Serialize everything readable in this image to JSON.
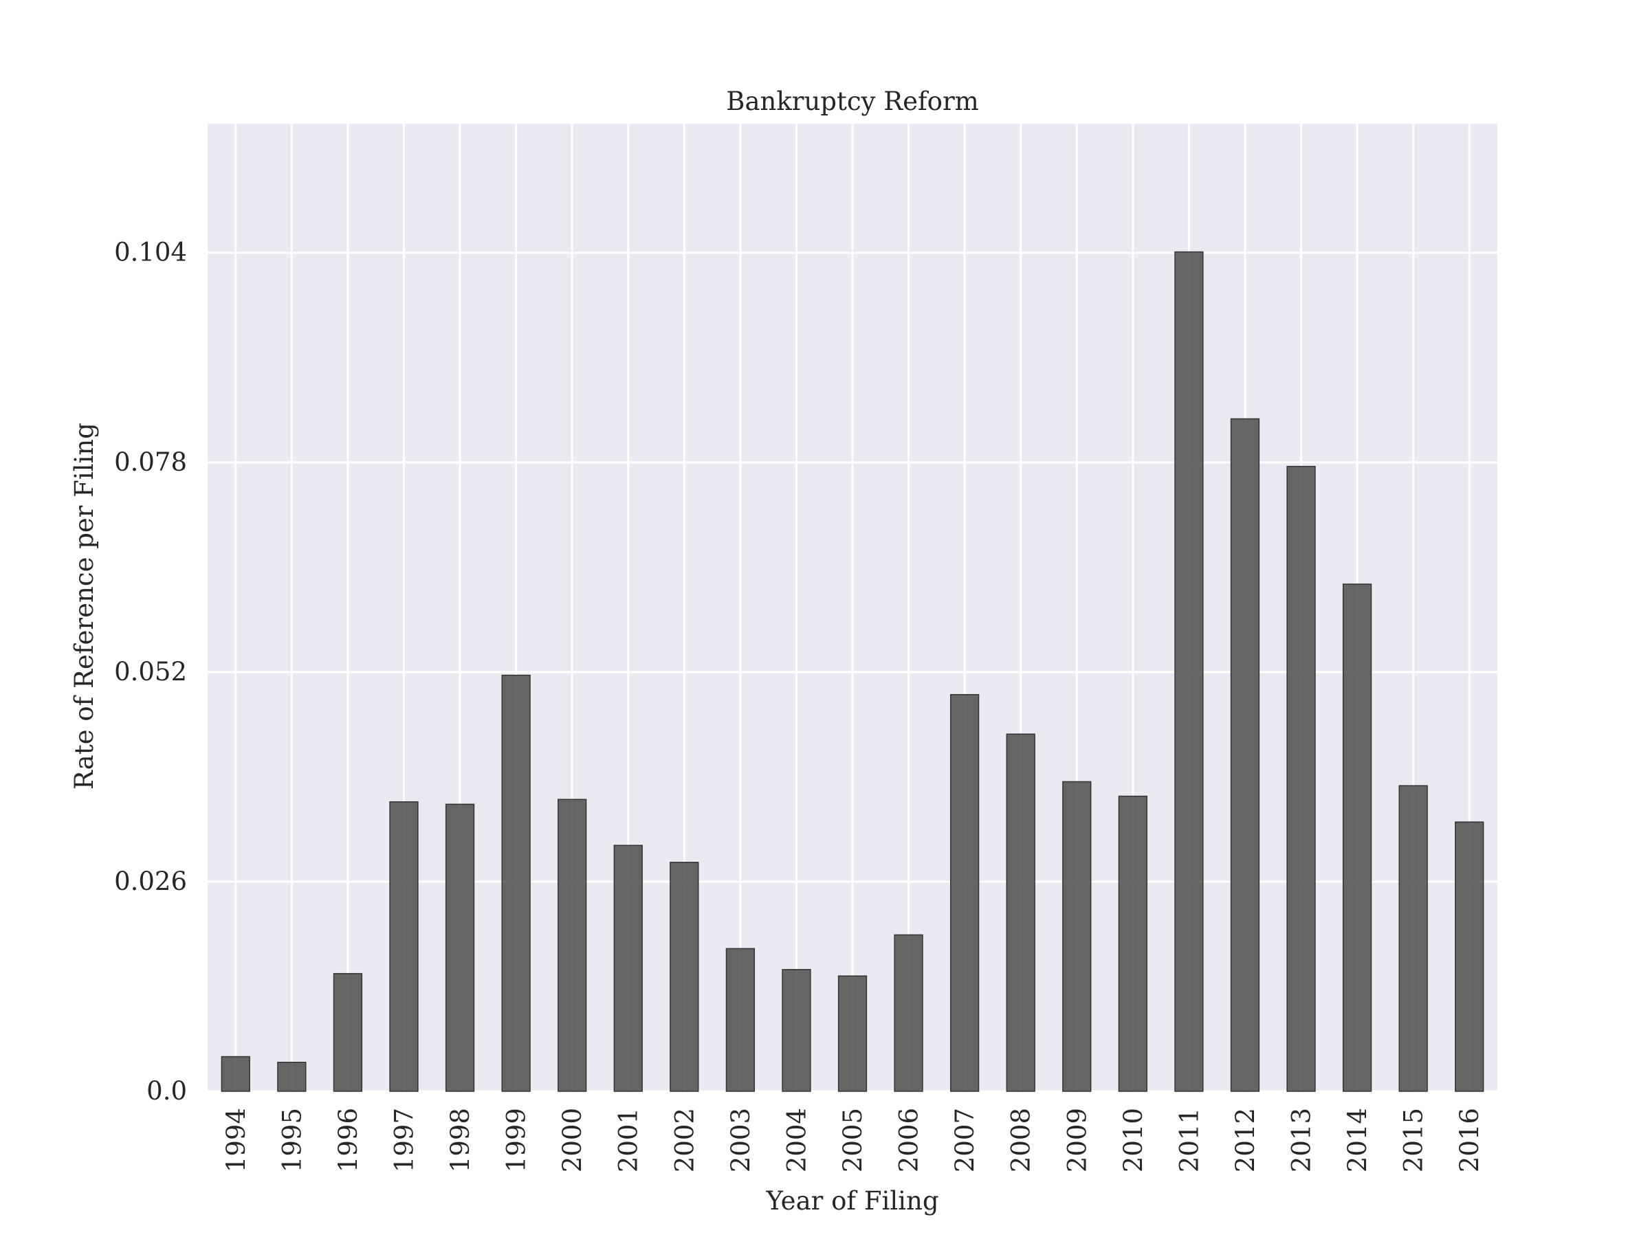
{
  "chart_data": {
    "type": "bar",
    "title": "Bankruptcy Reform",
    "xlabel": "Year of Filing",
    "ylabel": "Rate of Reference per Filing",
    "categories": [
      "1994",
      "1995",
      "1996",
      "1997",
      "1998",
      "1999",
      "2000",
      "2001",
      "2002",
      "2003",
      "2004",
      "2005",
      "2006",
      "2007",
      "2008",
      "2009",
      "2010",
      "2011",
      "2012",
      "2013",
      "2014",
      "2015",
      "2016"
    ],
    "values": [
      0.0043,
      0.0036,
      0.0146,
      0.0359,
      0.0356,
      0.0516,
      0.0362,
      0.0305,
      0.0284,
      0.0177,
      0.0151,
      0.0143,
      0.0194,
      0.0492,
      0.0443,
      0.0384,
      0.0366,
      0.1041,
      0.0834,
      0.0775,
      0.0629,
      0.0379,
      0.0334
    ],
    "yticks": [
      0.0,
      0.026,
      0.052,
      0.078,
      0.104
    ],
    "ytick_labels": [
      "0.0",
      "0.026",
      "0.052",
      "0.078",
      "0.104"
    ],
    "ylim": [
      0,
      0.12
    ],
    "grid": true,
    "colors": {
      "bar": "#4d4d4d",
      "plot_background": "#eaeaf2",
      "grid": "#ffffff"
    }
  }
}
